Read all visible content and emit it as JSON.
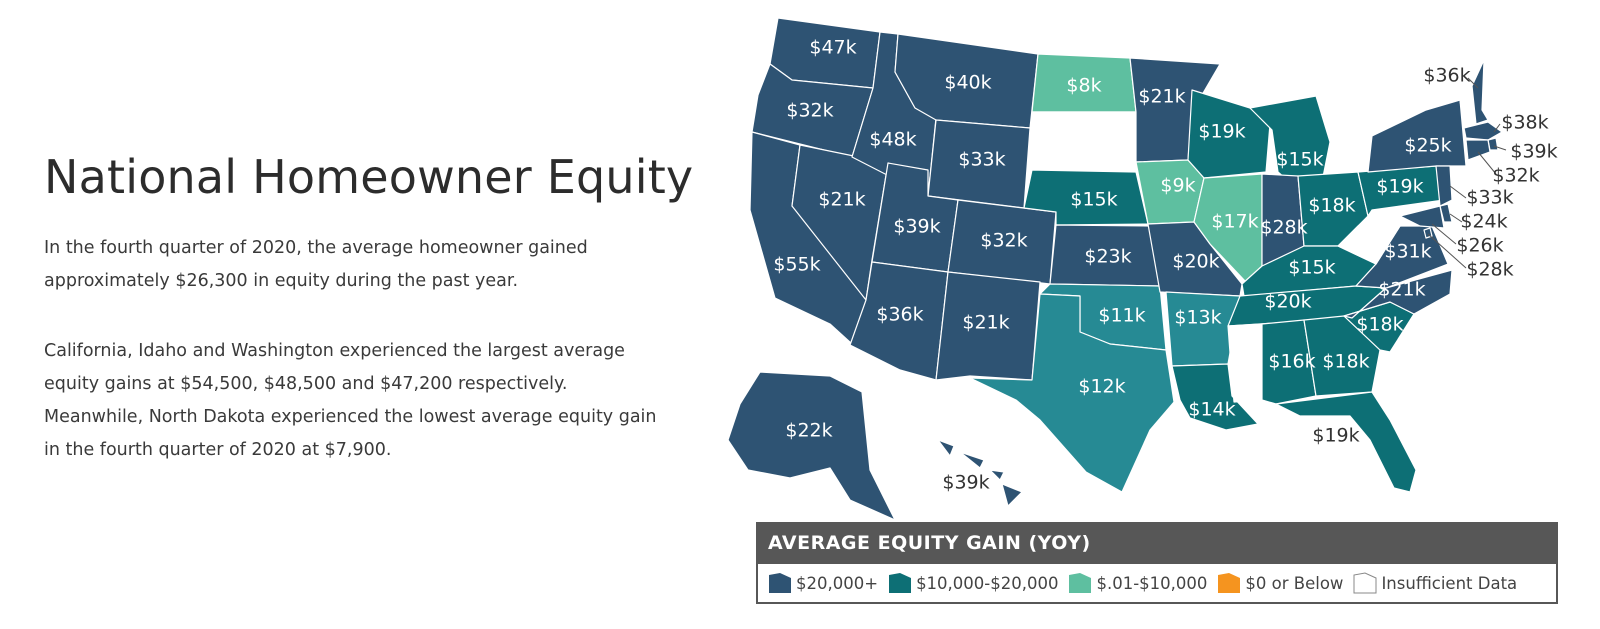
{
  "title": "National Homeowner Equity",
  "paragraphs": {
    "intro": "In the fourth quarter of 2020, the average homeowner gained approximately $26,300 in equity during the past year.",
    "detail": "California, Idaho and Washington experienced the largest average equity gains at $54,500, $48,500 and $47,200 respectively. Meanwhile, North Dakota experienced the lowest average equity gain in the fourth quarter of 2020 at $7,900."
  },
  "colors": {
    "high": "#2e5373",
    "mid": "#0d6f75",
    "midlight": "#268a94",
    "low": "#5ebfa0",
    "negative": "#f5941f",
    "insufficient": "#ffffff",
    "legend_header": "#575757"
  },
  "legend": {
    "title": "AVERAGE EQUITY GAIN (YOY)",
    "items": [
      {
        "key": "high",
        "label": "$20,000+"
      },
      {
        "key": "mid",
        "label": "$10,000-$20,000"
      },
      {
        "key": "low",
        "label": "$.01-$10,000"
      },
      {
        "key": "negative",
        "label": "$0 or Below"
      },
      {
        "key": "insufficient",
        "label": "Insufficient Data"
      }
    ]
  },
  "states": [
    {
      "id": "WA",
      "label": "$47k"
    },
    {
      "id": "OR",
      "label": "$32k"
    },
    {
      "id": "CA",
      "label": "$55k"
    },
    {
      "id": "NV",
      "label": "$21k"
    },
    {
      "id": "ID",
      "label": "$48k"
    },
    {
      "id": "MT",
      "label": "$40k"
    },
    {
      "id": "WY",
      "label": "$33k"
    },
    {
      "id": "UT",
      "label": "$39k"
    },
    {
      "id": "AZ",
      "label": "$36k"
    },
    {
      "id": "CO",
      "label": "$32k"
    },
    {
      "id": "NM",
      "label": "$21k"
    },
    {
      "id": "ND",
      "label": "$8k"
    },
    {
      "id": "SD",
      "label": ""
    },
    {
      "id": "NE",
      "label": "$15k"
    },
    {
      "id": "KS",
      "label": "$23k"
    },
    {
      "id": "OK",
      "label": "$11k"
    },
    {
      "id": "TX",
      "label": "$12k"
    },
    {
      "id": "MN",
      "label": "$21k"
    },
    {
      "id": "IA",
      "label": "$9k"
    },
    {
      "id": "MO",
      "label": "$20k"
    },
    {
      "id": "AR",
      "label": "$13k"
    },
    {
      "id": "LA",
      "label": "$14k"
    },
    {
      "id": "WI",
      "label": "$19k"
    },
    {
      "id": "IL",
      "label": "$17k"
    },
    {
      "id": "MI",
      "label": "$15k"
    },
    {
      "id": "IN",
      "label": "$28k"
    },
    {
      "id": "OH",
      "label": "$18k"
    },
    {
      "id": "KY",
      "label": "$15k"
    },
    {
      "id": "TN",
      "label": "$20k"
    },
    {
      "id": "MS",
      "label": ""
    },
    {
      "id": "AL",
      "label": "$16k"
    },
    {
      "id": "GA",
      "label": "$18k"
    },
    {
      "id": "FL",
      "label": "$19k"
    },
    {
      "id": "SC",
      "label": "$18k"
    },
    {
      "id": "NC",
      "label": "$21k"
    },
    {
      "id": "VA",
      "label": "$31k"
    },
    {
      "id": "WV",
      "label": ""
    },
    {
      "id": "PA",
      "label": "$19k"
    },
    {
      "id": "NY",
      "label": "$25k"
    },
    {
      "id": "ME",
      "label": ""
    },
    {
      "id": "VT",
      "label": ""
    },
    {
      "id": "NH",
      "label": "$36k"
    },
    {
      "id": "MA",
      "label": "$38k"
    },
    {
      "id": "RI",
      "label": "$39k"
    },
    {
      "id": "CT",
      "label": "$32k"
    },
    {
      "id": "NJ",
      "label": "$33k"
    },
    {
      "id": "DE",
      "label": "$24k"
    },
    {
      "id": "MD",
      "label": "$26k"
    },
    {
      "id": "DC",
      "label": "$28k"
    },
    {
      "id": "AK",
      "label": "$22k"
    },
    {
      "id": "HI",
      "label": "$39k"
    }
  ]
}
